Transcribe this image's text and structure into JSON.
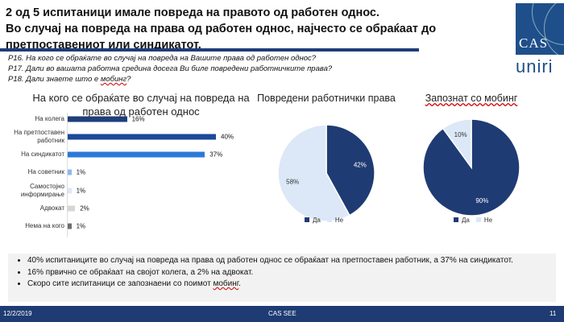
{
  "title": {
    "line1": "2 од 5 испитаници имале повреда на правото од работен однос.",
    "line2": "Во случај на повреда на права од работен однос, најчесто се обраќаат до претпоставениот или синдикатот."
  },
  "questions": {
    "q16": "Р16. На кого се обраќате во случај на повреда на Вашите права од работен однос?",
    "q17": "Р17. Дали во вашата работна средина досега Ви биле повредени работничките права?",
    "q18_prefix": "Р18. Дали знаете што е ",
    "q18_word": "мобинг",
    "q18_suffix": "?"
  },
  "logo": {
    "top": "CAS",
    "bottom": "UNIRI"
  },
  "chart_data": [
    {
      "type": "bar",
      "title": "На кого се обраќате во случај на повреда на права од работен однос",
      "categories": [
        "На колега",
        "На претпоставен работник",
        "На синдикатот",
        "На советник",
        "Самостојно информирање",
        "Адвокат",
        "Нема на кого"
      ],
      "values": [
        16,
        40,
        37,
        1,
        1,
        2,
        1
      ],
      "labels": [
        "16%",
        "40%",
        "37%",
        "1%",
        "1%",
        "2%",
        "1%"
      ],
      "colors": [
        "#1f3f7a",
        "#1a4a9a",
        "#2e78d8",
        "#8fb8ee",
        "#dce8f8",
        "#d6d6d6",
        "#6e6e6e"
      ]
    },
    {
      "type": "pie",
      "title": "Повредени работнички права",
      "slices": [
        {
          "name": "Да",
          "value": 42,
          "label": "42%",
          "color": "#1f3b73"
        },
        {
          "name": "Не",
          "value": 58,
          "label": "58%",
          "color": "#dce8f7"
        }
      ]
    },
    {
      "type": "pie",
      "title": "Запознат со мобинг",
      "slices": [
        {
          "name": "Да",
          "value": 90,
          "label": "90%",
          "color": "#1f3b73"
        },
        {
          "name": "Не",
          "value": 10,
          "label": "10%",
          "color": "#dce8f7"
        }
      ]
    }
  ],
  "bullets": {
    "b1": "40% испитаниците во случај на повреда на права од работен однос се обраќаат на претпоставен работник, а 37% на синдикатот.",
    "b2": "16% првично се обраќаат на својот колега, а 2% на адвокат.",
    "b3_prefix": "Скоро сите испитаници се запознаени со поимот ",
    "b3_word": "мобинг",
    "b3_suffix": "."
  },
  "footer": {
    "date": "12/2/2019",
    "center": "CAS SEE",
    "page": "11"
  }
}
